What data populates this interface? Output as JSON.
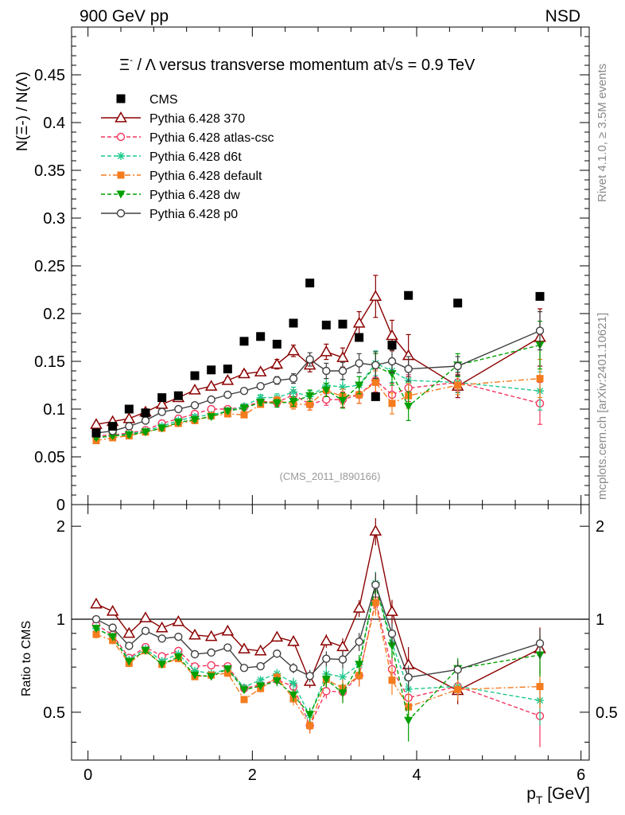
{
  "header": {
    "left": "900 GeV pp",
    "right": "NSD"
  },
  "title": {
    "prefix": "Ξ",
    "sup": "-",
    "middle": " / Λ versus transverse momentum at",
    "sqrt": "√s",
    "suffix": " = 0.9 TeV"
  },
  "side_labels": {
    "rivet": "Rivet 4.1.0, ≥ 3.5M events",
    "mcplots": "mcplots.cern.ch [arXiv:2401.10621]"
  },
  "watermark": "(CMS_2011_I890166)",
  "axes": {
    "ylabel_main": "N(Ξ-)  / N(Λ)",
    "ylabel_ratio": "Ratio to CMS",
    "xlabel": "p_T [GeV]",
    "xlabel_base": "p",
    "xlabel_sub": "T",
    "xlabel_unit": " [GeV]"
  },
  "legend": [
    {
      "label": "CMS"
    },
    {
      "label": "Pythia 6.428 370"
    },
    {
      "label": "Pythia 6.428 atlas-csc"
    },
    {
      "label": "Pythia 6.428 d6t"
    },
    {
      "label": "Pythia 6.428 default"
    },
    {
      "label": "Pythia 6.428 dw"
    },
    {
      "label": "Pythia 6.428 p0"
    }
  ],
  "chart_data": {
    "type": "scatter",
    "title": "Ξ- / Λ versus transverse momentum at √s = 0.9 TeV",
    "xlabel": "pT [GeV]",
    "ylabel": "N(Ξ-) / N(Λ)",
    "xlim": [
      -0.2,
      6.1
    ],
    "ylim": [
      0,
      0.5
    ],
    "ratio_ylim": [
      0.35,
      2.35
    ],
    "x_ticks": [
      0,
      2,
      4,
      6
    ],
    "x_tick_labels": [
      "0",
      "2",
      "4",
      "6"
    ],
    "y_ticks": [
      0,
      0.05,
      0.1,
      0.15,
      0.2,
      0.25,
      0.3,
      0.35,
      0.4,
      0.45
    ],
    "y_tick_labels": [
      "0",
      "0.05",
      "0.1",
      "0.15",
      "0.2",
      "0.25",
      "0.3",
      "0.35",
      "0.4",
      "0.45"
    ],
    "ratio_ticks": [
      0.5,
      1,
      2
    ],
    "ratio_tick_labels": [
      "0.5",
      "1",
      "2"
    ],
    "x": [
      0.1,
      0.3,
      0.5,
      0.7,
      0.9,
      1.1,
      1.3,
      1.5,
      1.7,
      1.9,
      2.1,
      2.3,
      2.5,
      2.7,
      2.9,
      3.1,
      3.3,
      3.5,
      3.7,
      3.9,
      4.5,
      5.5
    ],
    "cms": [
      0.075,
      0.082,
      0.1,
      0.096,
      0.112,
      0.114,
      0.135,
      0.141,
      0.142,
      0.171,
      0.176,
      0.168,
      0.19,
      0.232,
      0.188,
      0.189,
      0.175,
      0.113,
      0.167,
      0.219,
      0.211,
      0.218
    ],
    "series": [
      {
        "name": "Pythia 6.428 370",
        "color": "#8b0000",
        "marker": "triangle-open",
        "dash": "",
        "values": [
          0.084,
          0.087,
          0.09,
          0.097,
          0.105,
          0.112,
          0.12,
          0.124,
          0.13,
          0.137,
          0.139,
          0.147,
          0.161,
          0.146,
          0.16,
          0.154,
          0.19,
          0.218,
          0.177,
          0.156,
          0.124,
          0.175
        ],
        "errors": [
          0.002,
          0.002,
          0.002,
          0.002,
          0.002,
          0.002,
          0.002,
          0.002,
          0.003,
          0.003,
          0.003,
          0.005,
          0.006,
          0.007,
          0.008,
          0.01,
          0.012,
          0.022,
          0.016,
          0.022,
          0.012,
          0.03
        ]
      },
      {
        "name": "Pythia 6.428 atlas-csc",
        "color": "#f2355e",
        "marker": "circle-open",
        "dash": "5,3",
        "values": [
          0.072,
          0.073,
          0.075,
          0.078,
          0.085,
          0.09,
          0.095,
          0.1,
          0.1,
          0.102,
          0.108,
          0.107,
          0.115,
          0.105,
          0.11,
          0.11,
          0.115,
          0.13,
          0.115,
          0.122,
          0.128,
          0.106
        ],
        "errors": [
          0.002,
          0.002,
          0.002,
          0.002,
          0.002,
          0.002,
          0.002,
          0.002,
          0.002,
          0.002,
          0.003,
          0.004,
          0.005,
          0.006,
          0.006,
          0.008,
          0.009,
          0.012,
          0.012,
          0.014,
          0.01,
          0.022
        ]
      },
      {
        "name": "Pythia 6.428 d6t",
        "color": "#1dc98c",
        "marker": "star",
        "dash": "5,3",
        "values": [
          0.07,
          0.072,
          0.074,
          0.077,
          0.082,
          0.088,
          0.092,
          0.094,
          0.098,
          0.103,
          0.112,
          0.112,
          0.118,
          0.113,
          0.125,
          0.123,
          0.125,
          0.148,
          0.14,
          0.13,
          0.128,
          0.119
        ],
        "errors": [
          0.002,
          0.002,
          0.002,
          0.002,
          0.002,
          0.002,
          0.002,
          0.002,
          0.002,
          0.002,
          0.003,
          0.004,
          0.005,
          0.006,
          0.007,
          0.008,
          0.009,
          0.013,
          0.012,
          0.014,
          0.011,
          0.02
        ]
      },
      {
        "name": "Pythia 6.428 default",
        "color": "#f47c1e",
        "marker": "square-filled",
        "dash": "7,3,2,3",
        "values": [
          0.067,
          0.07,
          0.072,
          0.076,
          0.08,
          0.085,
          0.088,
          0.093,
          0.095,
          0.094,
          0.105,
          0.109,
          0.105,
          0.105,
          0.12,
          0.113,
          0.115,
          0.128,
          0.106,
          0.114,
          0.125,
          0.132
        ],
        "errors": [
          0.002,
          0.002,
          0.002,
          0.002,
          0.002,
          0.002,
          0.002,
          0.002,
          0.002,
          0.002,
          0.003,
          0.004,
          0.005,
          0.006,
          0.007,
          0.008,
          0.009,
          0.012,
          0.011,
          0.013,
          0.01,
          0.02
        ]
      },
      {
        "name": "Pythia 6.428 dw",
        "color": "#00a000",
        "marker": "triangle-down-filled",
        "dash": "5,3",
        "values": [
          0.07,
          0.072,
          0.073,
          0.076,
          0.08,
          0.086,
          0.089,
          0.092,
          0.098,
          0.101,
          0.107,
          0.106,
          0.108,
          0.114,
          0.12,
          0.109,
          0.125,
          0.145,
          0.137,
          0.103,
          0.146,
          0.167
        ],
        "errors": [
          0.002,
          0.002,
          0.002,
          0.002,
          0.002,
          0.002,
          0.002,
          0.002,
          0.002,
          0.002,
          0.003,
          0.004,
          0.005,
          0.006,
          0.007,
          0.008,
          0.009,
          0.013,
          0.012,
          0.015,
          0.012,
          0.025
        ]
      },
      {
        "name": "Pythia 6.428 p0",
        "color": "#404040",
        "marker": "circle-open",
        "dash": "",
        "values": [
          0.075,
          0.077,
          0.082,
          0.088,
          0.097,
          0.1,
          0.104,
          0.11,
          0.115,
          0.119,
          0.124,
          0.13,
          0.132,
          0.152,
          0.14,
          0.14,
          0.148,
          0.146,
          0.15,
          0.142,
          0.145,
          0.182
        ],
        "errors": [
          0.002,
          0.002,
          0.002,
          0.002,
          0.002,
          0.002,
          0.002,
          0.002,
          0.003,
          0.003,
          0.003,
          0.004,
          0.005,
          0.007,
          0.008,
          0.009,
          0.01,
          0.014,
          0.012,
          0.013,
          0.01,
          0.02
        ]
      }
    ]
  }
}
